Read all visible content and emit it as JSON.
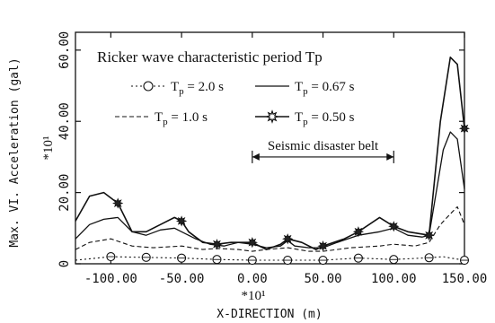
{
  "chart_data": {
    "type": "line",
    "title": "",
    "legend_title": "Ricker wave characteristic period Tp",
    "xlabel": "X-DIRECTION (m)",
    "ylabel": "Max. VI. Acceleration (gal)",
    "x_multiplier": "*10¹",
    "y_multiplier": "*10¹",
    "xlim": [
      -125,
      150
    ],
    "ylim": [
      0,
      65
    ],
    "x_ticks": [
      -100,
      -50,
      0,
      50,
      100,
      150
    ],
    "x_tick_labels": [
      "-100.00",
      "-50.00",
      "0.00",
      "50.00",
      "100.00",
      "150.00"
    ],
    "y_ticks": [
      0,
      20,
      40,
      60
    ],
    "y_tick_labels": [
      "0",
      "20.00",
      "40.00",
      "60.00"
    ],
    "grid": false,
    "annotation": {
      "text": "Seismic disaster belt",
      "from": 0,
      "to": 100,
      "y": 30
    },
    "legend": [
      {
        "label": "T",
        "subscript": "p",
        "value": "= 2.0 s",
        "style": "dotted-circle"
      },
      {
        "label": "T",
        "subscript": "p",
        "value": "= 0.67 s",
        "style": "solid"
      },
      {
        "label": "T",
        "subscript": "p",
        "value": "= 1.0 s",
        "style": "dashed"
      },
      {
        "label": "T",
        "subscript": "p",
        "value": "= 0.50 s",
        "style": "solid-star"
      }
    ],
    "series": [
      {
        "name": "Tp = 2.0 s",
        "style": "dotted-circle",
        "x": [
          -125,
          -100,
          -75,
          -50,
          -25,
          0,
          25,
          50,
          75,
          100,
          125,
          135,
          140,
          150
        ],
        "y": [
          1,
          2,
          1.8,
          1.6,
          1.2,
          1,
          1,
          1,
          1.6,
          1.2,
          1.7,
          2,
          1.6,
          1
        ],
        "markers_x": [
          -100,
          -75,
          -50,
          -25,
          0,
          25,
          50,
          75,
          100,
          125,
          150
        ],
        "markers_y": [
          2,
          1.8,
          1.6,
          1.2,
          1,
          1,
          1,
          1.6,
          1.2,
          1.7,
          1
        ]
      },
      {
        "name": "Tp = 1.0 s",
        "style": "dashed",
        "x": [
          -125,
          -115,
          -100,
          -85,
          -70,
          -50,
          -35,
          -25,
          -10,
          0,
          10,
          25,
          40,
          50,
          70,
          90,
          100,
          115,
          125,
          133,
          140,
          145,
          150
        ],
        "y": [
          4,
          6,
          7,
          5,
          4.5,
          5,
          4,
          4.3,
          4,
          3.5,
          4,
          4.5,
          3.5,
          3.5,
          4.5,
          5,
          5.5,
          5,
          6,
          11,
          14,
          16,
          11
        ]
      },
      {
        "name": "Tp = 0.67 s",
        "style": "solid",
        "x": [
          -125,
          -115,
          -105,
          -95,
          -85,
          -75,
          -65,
          -55,
          -50,
          -40,
          -30,
          -20,
          -10,
          0,
          10,
          20,
          25,
          30,
          40,
          50,
          60,
          75,
          90,
          100,
          110,
          120,
          125,
          130,
          135,
          140,
          145,
          150
        ],
        "y": [
          7,
          11,
          12.5,
          13,
          9,
          8,
          9.5,
          10,
          9,
          7,
          5.5,
          5,
          6,
          5.5,
          4.5,
          5,
          6.5,
          5,
          4.5,
          4.5,
          6,
          8,
          9,
          10,
          8,
          7.5,
          8,
          20,
          32,
          37,
          35,
          21
        ]
      },
      {
        "name": "Tp = 0.50 s",
        "style": "solid-star",
        "x": [
          -125,
          -115,
          -105,
          -95,
          -85,
          -75,
          -65,
          -55,
          -50,
          -45,
          -35,
          -25,
          -15,
          0,
          10,
          20,
          25,
          35,
          45,
          50,
          65,
          75,
          90,
          100,
          110,
          125,
          133,
          140,
          145,
          150
        ],
        "y": [
          12,
          19,
          20,
          17,
          9,
          9,
          11,
          13,
          12,
          9,
          6,
          5.5,
          6,
          6,
          4,
          5.5,
          7,
          6,
          4,
          5,
          7,
          9,
          13,
          10.5,
          9,
          8,
          40,
          58,
          56,
          38
        ],
        "markers_x": [
          -95,
          -50,
          -25,
          0,
          25,
          50,
          75,
          100,
          125,
          150
        ],
        "markers_y": [
          17,
          12,
          5.5,
          6,
          7,
          5,
          9,
          10.5,
          8,
          38
        ]
      }
    ]
  }
}
